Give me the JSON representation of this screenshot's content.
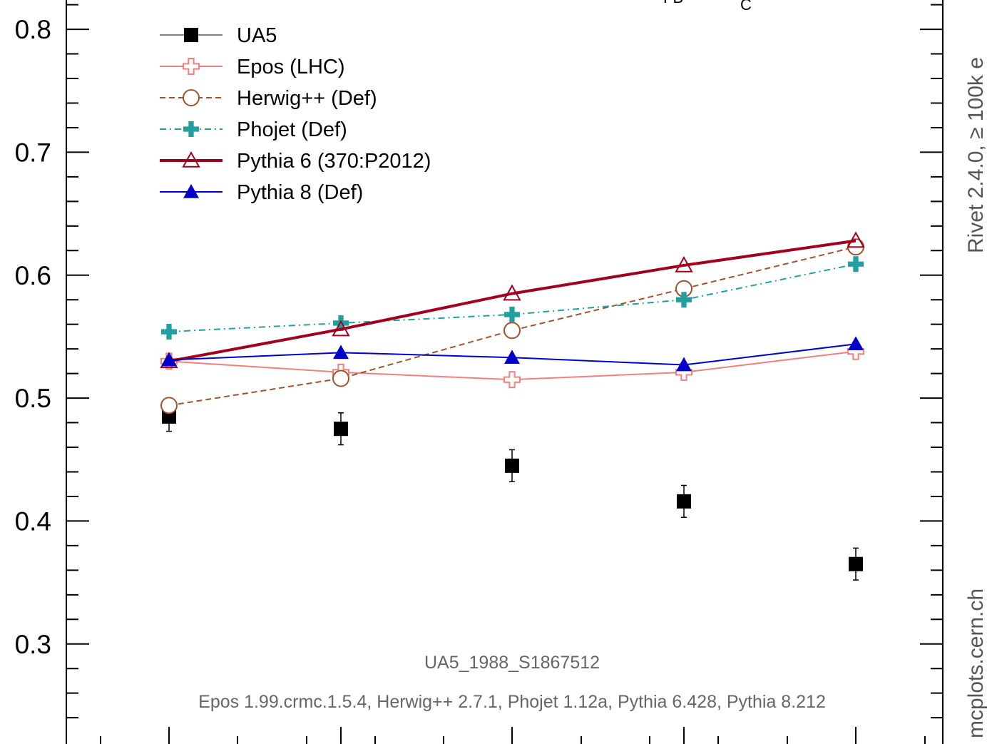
{
  "chart_data": {
    "type": "line",
    "title": "",
    "xlabel": "",
    "ylabel": "",
    "ylim": [
      0.225,
      0.825
    ],
    "y_ticks": [
      "0.3",
      "0.4",
      "0.5",
      "0.6",
      "0.7",
      "0.8"
    ],
    "x_points": [
      1,
      2,
      3,
      4,
      5
    ],
    "series": [
      {
        "name": "UA5",
        "color": "#000000",
        "marker": "square",
        "line": "none",
        "values": [
          0.485,
          0.475,
          0.445,
          0.416,
          0.365
        ],
        "errors": [
          0.012,
          0.013,
          0.013,
          0.013,
          0.013
        ]
      },
      {
        "name": "Epos (LHC)",
        "color": "#f08080",
        "marker": "open-cross",
        "line": "solid",
        "values": [
          0.53,
          0.521,
          0.515,
          0.521,
          0.538
        ]
      },
      {
        "name": "Herwig++ (Def)",
        "color": "#a0522d",
        "marker": "open-circle",
        "line": "dashed",
        "values": [
          0.494,
          0.516,
          0.555,
          0.589,
          0.623
        ]
      },
      {
        "name": "Phojet (Def)",
        "color": "#20a0a0",
        "marker": "filled-cross",
        "line": "dashdot",
        "values": [
          0.554,
          0.561,
          0.568,
          0.58,
          0.609
        ]
      },
      {
        "name": "Pythia 6 (370:P2012)",
        "color": "#a0001e",
        "marker": "open-triangle",
        "line": "solid-thick",
        "values": [
          0.53,
          0.556,
          0.585,
          0.608,
          0.628
        ]
      },
      {
        "name": "Pythia 8 (Def)",
        "color": "#0000cc",
        "marker": "filled-triangle",
        "line": "solid",
        "values": [
          0.531,
          0.537,
          0.533,
          0.527,
          0.544
        ]
      }
    ],
    "legend_position": "top-left",
    "annotations": {
      "analysis": "UA5_1988_S1867512",
      "generators": "Epos 1.99.crmc.1.5.4, Herwig++ 2.7.1, Phojet 1.12a, Pythia 6.428, Pythia 8.212",
      "rivet": "Rivet 2.4.0,  ≥ 100k e",
      "site": "mcplots.cern.ch",
      "top_fragment_1": "FB",
      "top_fragment_2": "C"
    }
  }
}
